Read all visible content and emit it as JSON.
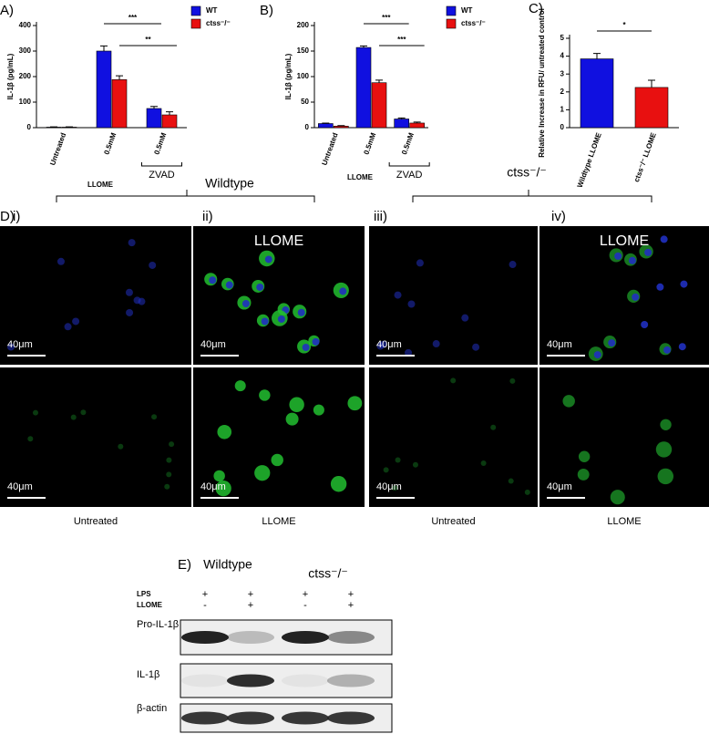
{
  "chart_data": [
    {
      "type": "bar",
      "panel": "A)",
      "ylabel": "IL-1β (pg/mL)",
      "xlabel": "LLOME",
      "group_label": "ZVAD",
      "categories": [
        "Untreated",
        "0.5mM",
        "0.5mM"
      ],
      "series": [
        {
          "name": "WT",
          "color": "#1010e0",
          "values": [
            2,
            300,
            75
          ],
          "errors": [
            1,
            20,
            8
          ]
        },
        {
          "name": "ctss⁻/⁻",
          "color": "#e81010",
          "values": [
            2,
            188,
            50
          ],
          "errors": [
            1,
            15,
            12
          ]
        }
      ],
      "annotations": [
        "***",
        "**"
      ],
      "ylim": [
        0,
        400
      ],
      "yticks": [
        0,
        100,
        200,
        300,
        400
      ]
    },
    {
      "type": "bar",
      "panel": "B)",
      "ylabel": "IL-1β (pg/mL)",
      "xlabel": "LLOME",
      "group_label": "ZVAD",
      "categories": [
        "Untreated",
        "0.5mM",
        "0.5mM"
      ],
      "series": [
        {
          "name": "WT",
          "color": "#1010e0",
          "values": [
            8,
            157,
            17
          ],
          "errors": [
            1,
            3,
            2
          ]
        },
        {
          "name": "ctss⁻/⁻",
          "color": "#e81010",
          "values": [
            3,
            88,
            9
          ],
          "errors": [
            1,
            5,
            2
          ]
        }
      ],
      "annotations": [
        "***",
        "***"
      ],
      "ylim": [
        0,
        200
      ],
      "yticks": [
        0,
        50,
        100,
        150,
        200
      ]
    },
    {
      "type": "bar",
      "panel": "C)",
      "ylabel": "Relative Increase in RFU/ untreated control",
      "categories": [
        "Wildtype LLOME",
        "ctss⁻/⁻ LLOME"
      ],
      "series": [
        {
          "colors": [
            "#1010e0",
            "#e81010"
          ],
          "values": [
            3.85,
            2.25
          ],
          "errors": [
            0.3,
            0.4
          ]
        }
      ],
      "annotations": [
        "*"
      ],
      "ylim": [
        0,
        5
      ],
      "yticks": [
        0,
        1,
        2,
        3,
        4,
        5
      ]
    }
  ],
  "panel_d": {
    "label": "D)",
    "groups": [
      "Wildtype",
      "ctss⁻/⁻"
    ],
    "subpanels": [
      "i)",
      "ii)",
      "iii)",
      "iv)"
    ],
    "overlay": [
      "LLOME",
      "LLOME"
    ],
    "scale_bar": "40μm",
    "captions": [
      "Untreated",
      "LLOME",
      "Untreated",
      "LLOME"
    ]
  },
  "panel_e": {
    "label": "E)",
    "groups": [
      "Wildtype",
      "ctss⁻/⁻"
    ],
    "conditions": [
      {
        "name": "LPS",
        "marks": [
          "+",
          "+",
          "+",
          "+"
        ]
      },
      {
        "name": "LLOME",
        "marks": [
          "-",
          "+",
          "-",
          "+"
        ]
      }
    ],
    "blots": [
      "Pro-IL-1β",
      "IL-1β",
      "β-actin"
    ]
  }
}
